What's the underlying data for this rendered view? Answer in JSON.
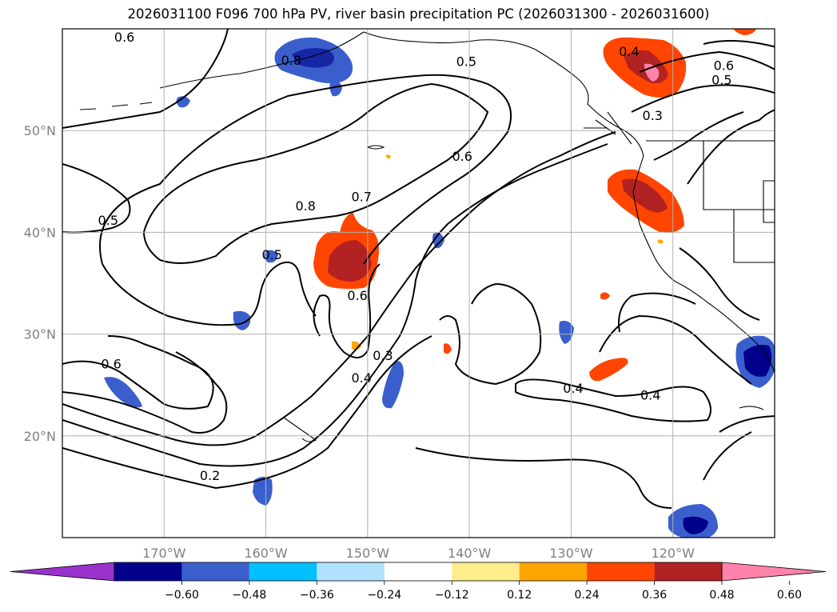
{
  "title": "2026031100 F096 700 hPa PV, river basin precipitation PC (2026031300 - 2026031600)",
  "map": {
    "lon_range": [
      -180,
      -110
    ],
    "lat_range": [
      10,
      60
    ],
    "lat_gridlines": [
      20,
      30,
      40,
      50
    ],
    "lon_gridlines": [
      -170,
      -160,
      -150,
      -140,
      -130,
      -120
    ],
    "lat_labels": [
      "20°N",
      "30°N",
      "40°N",
      "50°N"
    ],
    "lon_labels": [
      "170°W",
      "160°W",
      "150°W",
      "140°W",
      "130°W",
      "120°W"
    ]
  },
  "contour_labels": [
    {
      "text": "0.6",
      "lon": -173.9,
      "lat": 59.1
    },
    {
      "text": "0.8",
      "lon": -157.5,
      "lat": 56.8
    },
    {
      "text": "0.5",
      "lon": -140.3,
      "lat": 56.7
    },
    {
      "text": "0.4",
      "lon": -124.3,
      "lat": 57.7
    },
    {
      "text": "0.6",
      "lon": -115.0,
      "lat": 56.3
    },
    {
      "text": "0.5",
      "lon": -115.2,
      "lat": 54.9
    },
    {
      "text": "0.3",
      "lon": -122.0,
      "lat": 51.4
    },
    {
      "text": "0.6",
      "lon": -140.7,
      "lat": 47.4
    },
    {
      "text": "0.7",
      "lon": -150.6,
      "lat": 43.4
    },
    {
      "text": "0.8",
      "lon": -156.1,
      "lat": 42.5
    },
    {
      "text": "0.5",
      "lon": -175.5,
      "lat": 41.1
    },
    {
      "text": "0.5",
      "lon": -159.4,
      "lat": 37.7
    },
    {
      "text": "0.6",
      "lon": -151.0,
      "lat": 33.7
    },
    {
      "text": "0.3",
      "lon": -148.5,
      "lat": 27.8
    },
    {
      "text": "0.4",
      "lon": -150.6,
      "lat": 25.6
    },
    {
      "text": "0.6",
      "lon": -175.2,
      "lat": 27.0
    },
    {
      "text": "0.4",
      "lon": -129.8,
      "lat": 24.6
    },
    {
      "text": "0.4",
      "lon": -122.2,
      "lat": 23.9
    },
    {
      "text": "0.2",
      "lon": -165.5,
      "lat": 16.0
    }
  ],
  "colorbar": {
    "ticks": [
      "−0.60",
      "−0.48",
      "−0.36",
      "−0.24",
      "−0.12",
      "0.12",
      "0.24",
      "0.36",
      "0.48",
      "0.60"
    ],
    "colors": [
      "#9932cc",
      "#00008b",
      "#3a5fcd",
      "#00bfff",
      "#b0e2ff",
      "#ffffff",
      "#ffec8b",
      "#ffa500",
      "#ff4500",
      "#b22222",
      "#ff82ab"
    ]
  }
}
